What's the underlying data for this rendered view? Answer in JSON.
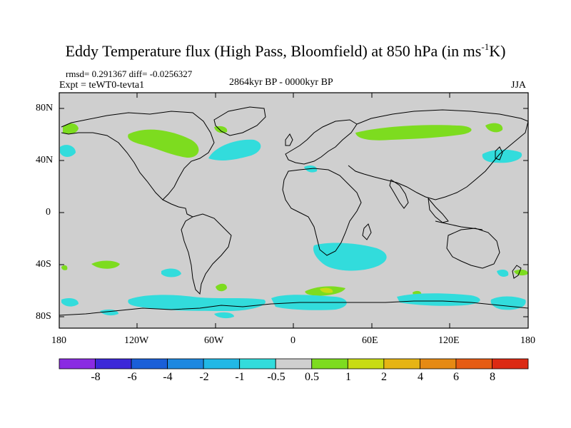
{
  "title": {
    "main": "Eddy Temperature flux (High Pass, Bloomfield) at 850 hPa (in ms",
    "sup": "-1",
    "tail": "K)"
  },
  "stats": {
    "rmsd_diff": "rmsd= 0.291367 diff= -0.0256327",
    "experiment": "Expt = teWT0-tevta1",
    "period": "2864kyr BP - 0000kyr BP",
    "season": "JJA"
  },
  "axes": {
    "lat_labels": [
      "80N",
      "40N",
      "0",
      "40S",
      "80S"
    ],
    "lon_labels": [
      "180",
      "120W",
      "60W",
      "0",
      "60E",
      "120E",
      "180"
    ]
  },
  "colorbar": {
    "labels": [
      "-8",
      "-6",
      "-4",
      "-2",
      "-1",
      "-0.5",
      "0.5",
      "1",
      "2",
      "4",
      "6",
      "8"
    ],
    "colors": [
      "#8a2be2",
      "#3c28d8",
      "#1a5fd8",
      "#1e88e0",
      "#22b8e6",
      "#32dcdc",
      "#cfcfcf",
      "#7ddc1f",
      "#c8dc14",
      "#e6b414",
      "#e68a14",
      "#e65c14",
      "#dc2a14"
    ]
  },
  "map_colors": {
    "background": "#cfcfcf",
    "cyan": "#32dcdc",
    "light_blue": "#22c4e8",
    "green": "#7ddc1f",
    "yellow_green": "#c8dc14",
    "coast": "#000000"
  }
}
